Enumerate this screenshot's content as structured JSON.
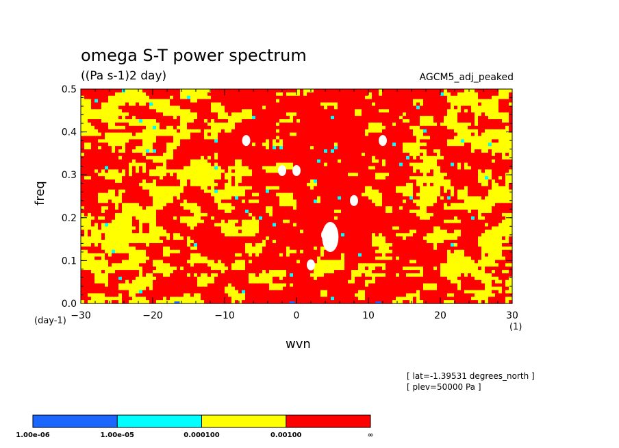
{
  "header": {
    "title": "omega S-T power spectrum",
    "units": "((Pa s-1)2 day)",
    "run_name": "AGCM5_adj_peaked"
  },
  "axes": {
    "ylabel": "freq",
    "xlabel": "wvn",
    "y_unit": "(day-1)",
    "x_unit": "(1)"
  },
  "info": {
    "lat": "[ lat=-1.39531 degrees_north ]",
    "plev": "[ plev=50000 Pa ]"
  },
  "colors": {
    "bin1": "#1a66ff",
    "bin2": "#00ffff",
    "bin3": "#ffff00",
    "bin4": "#ff0000",
    "gap": "#ffffff"
  },
  "chart_data": {
    "type": "heatmap",
    "title": "omega S-T power spectrum",
    "subtitle": "((Pa s-1)2 day)",
    "xlabel": "wvn",
    "ylabel": "freq",
    "xlim": [
      -30,
      30
    ],
    "ylim": [
      0,
      0.5
    ],
    "x_ticks": [
      "-30",
      "-20",
      "-10",
      "0",
      "10",
      "20",
      "30"
    ],
    "y_ticks": [
      "0.0",
      "0.1",
      "0.2",
      "0.3",
      "0.4",
      "0.5"
    ],
    "colorbar": {
      "labels": [
        "1.00e-06",
        "1.00e-05",
        "0.000100",
        "0.00100",
        "∞"
      ],
      "bins": [
        {
          "lower": "1.00e-06",
          "upper": "1.00e-05",
          "color": "#1a66ff"
        },
        {
          "lower": "1.00e-05",
          "upper": "0.000100",
          "color": "#00ffff"
        },
        {
          "lower": "0.000100",
          "upper": "0.00100",
          "color": "#ffff00"
        },
        {
          "lower": "0.00100",
          "upper": "∞",
          "color": "#ff0000"
        }
      ]
    },
    "field_description_values": {
      "dominant_bins": [
        "0.000100-0.00100",
        "0.00100-∞"
      ],
      "white_gaps_near": [
        [
          -2,
          0.31
        ],
        [
          0,
          0.31
        ],
        [
          4,
          0.16
        ],
        [
          2,
          0.09
        ],
        [
          8,
          0.24
        ],
        [
          12,
          0.38
        ],
        [
          -7,
          0.38
        ]
      ]
    }
  }
}
